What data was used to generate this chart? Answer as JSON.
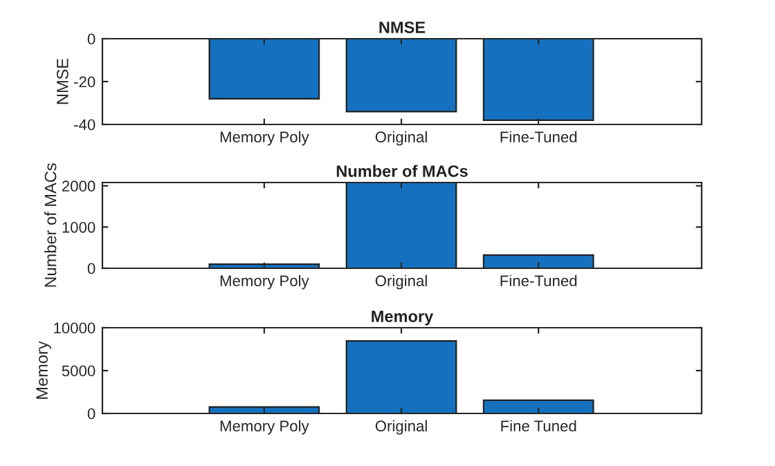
{
  "chart_data": [
    {
      "type": "bar",
      "title": "NMSE",
      "ylabel": "NMSE",
      "categories": [
        "Memory Poly",
        "Original",
        "Fine-Tuned"
      ],
      "values": [
        -28,
        -34,
        -38
      ],
      "color": "#1571bf",
      "ylim": [
        -40,
        0
      ],
      "yticks": [
        -40,
        -20,
        0
      ],
      "grid": false
    },
    {
      "type": "bar",
      "title": "Number of MACs",
      "ylabel": "Number of MACs",
      "categories": [
        "Memory Poly",
        "Original",
        "Fine-Tuned"
      ],
      "values": [
        100,
        2080,
        320
      ],
      "color": "#1571bf",
      "ylim": [
        0,
        2080
      ],
      "yticks": [
        0,
        1000,
        2000
      ],
      "grid": false
    },
    {
      "type": "bar",
      "title": "Memory",
      "ylabel": "Memory",
      "categories": [
        "Memory Poly",
        "Original",
        "Fine Tuned"
      ],
      "values": [
        750,
        8450,
        1550
      ],
      "color": "#1571bf",
      "ylim": [
        0,
        10000
      ],
      "yticks": [
        0,
        5000,
        10000
      ],
      "grid": false
    }
  ]
}
